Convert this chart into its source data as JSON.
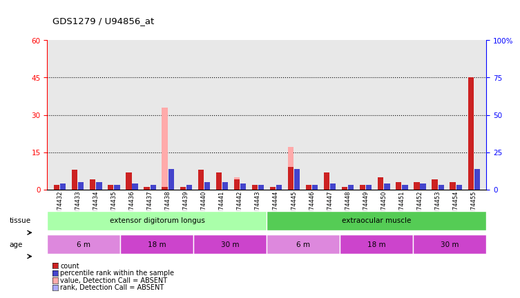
{
  "title": "GDS1279 / U94856_at",
  "samples": [
    "GSM74432",
    "GSM74433",
    "GSM74434",
    "GSM74435",
    "GSM74436",
    "GSM74437",
    "GSM74438",
    "GSM74439",
    "GSM74440",
    "GSM74441",
    "GSM74442",
    "GSM74443",
    "GSM74444",
    "GSM74445",
    "GSM74446",
    "GSM74447",
    "GSM74448",
    "GSM74449",
    "GSM74450",
    "GSM74451",
    "GSM74452",
    "GSM74453",
    "GSM74454",
    "GSM74455"
  ],
  "count_vals": [
    2,
    8,
    4,
    2,
    7,
    1,
    1,
    1,
    8,
    7,
    4,
    2,
    1,
    9,
    2,
    7,
    1,
    2,
    5,
    3,
    3,
    4,
    3,
    45
  ],
  "rank_vals": [
    4,
    5,
    5,
    3,
    4,
    3,
    14,
    3,
    5,
    5,
    4,
    3,
    3,
    14,
    3,
    4,
    3,
    3,
    4,
    3,
    4,
    3,
    3,
    14
  ],
  "absent_count": [
    2,
    5,
    2,
    1,
    2,
    0.5,
    33,
    0.5,
    6,
    6,
    5,
    1,
    0.5,
    17,
    1,
    6,
    0.5,
    1,
    3,
    2,
    2,
    3,
    2,
    5
  ],
  "absent_rank": [
    3,
    3,
    3,
    2,
    3,
    2,
    13,
    2,
    3,
    3,
    3,
    2,
    2,
    11,
    2,
    3,
    2,
    2,
    3,
    2,
    3,
    2,
    2,
    11
  ],
  "tissue_groups": [
    {
      "label": "extensor digitorum longus",
      "start": 0,
      "end": 12,
      "color": "#aaffaa"
    },
    {
      "label": "extraocular muscle",
      "start": 12,
      "end": 24,
      "color": "#55cc55"
    }
  ],
  "age_groups": [
    {
      "label": "6 m",
      "start": 0,
      "end": 4,
      "color": "#dd88dd"
    },
    {
      "label": "18 m",
      "start": 4,
      "end": 8,
      "color": "#cc44cc"
    },
    {
      "label": "30 m",
      "start": 8,
      "end": 12,
      "color": "#cc44cc"
    },
    {
      "label": "6 m",
      "start": 12,
      "end": 16,
      "color": "#dd88dd"
    },
    {
      "label": "18 m",
      "start": 16,
      "end": 20,
      "color": "#cc44cc"
    },
    {
      "label": "30 m",
      "start": 20,
      "end": 24,
      "color": "#cc44cc"
    }
  ],
  "ylim_left": [
    0,
    60
  ],
  "ylim_right": [
    0,
    100
  ],
  "yticks_left": [
    0,
    15,
    30,
    45,
    60
  ],
  "yticks_right": [
    0,
    25,
    50,
    75,
    100
  ],
  "bar_width": 0.35,
  "color_count": "#cc2222",
  "color_rank": "#4444cc",
  "color_absent_count": "#ffaaaa",
  "color_absent_rank": "#aaaaff",
  "legend_items": [
    {
      "label": "count",
      "color": "#cc2222"
    },
    {
      "label": "percentile rank within the sample",
      "color": "#4444cc"
    },
    {
      "label": "value, Detection Call = ABSENT",
      "color": "#ffaaaa"
    },
    {
      "label": "rank, Detection Call = ABSENT",
      "color": "#aaaaff"
    }
  ]
}
